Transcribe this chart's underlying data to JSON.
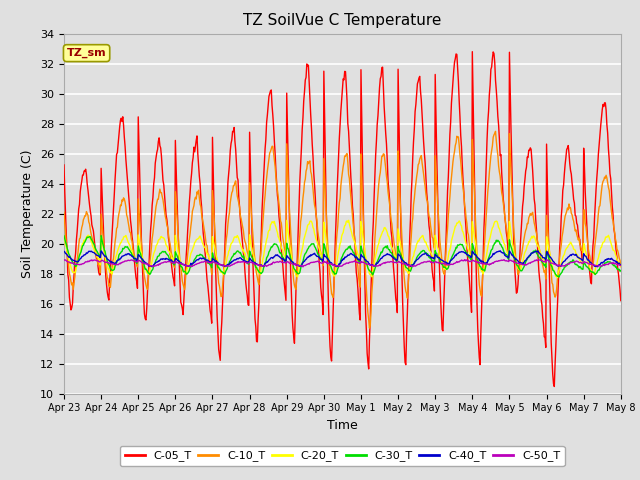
{
  "title": "TZ SoilVue C Temperature",
  "xlabel": "Time",
  "ylabel": "Soil Temperature (C)",
  "ylim": [
    10,
    34
  ],
  "yticks": [
    10,
    12,
    14,
    16,
    18,
    20,
    22,
    24,
    26,
    28,
    30,
    32,
    34
  ],
  "series_colors": {
    "C-05_T": "#ff0000",
    "C-10_T": "#ff8c00",
    "C-20_T": "#ffff00",
    "C-30_T": "#00dd00",
    "C-40_T": "#0000cc",
    "C-50_T": "#bb00bb"
  },
  "series_order": [
    "C-05_T",
    "C-10_T",
    "C-20_T",
    "C-30_T",
    "C-40_T",
    "C-50_T"
  ],
  "background_color": "#e0e0e0",
  "annotation_text": "TZ_sm",
  "annotation_bg": "#ffff99",
  "annotation_border": "#999900",
  "legend_colors": [
    "#ff0000",
    "#ff8c00",
    "#ffff00",
    "#00dd00",
    "#0000cc",
    "#bb00bb"
  ],
  "legend_labels": [
    "C-05_T",
    "C-10_T",
    "C-20_T",
    "C-30_T",
    "C-40_T",
    "C-50_T"
  ],
  "tick_labels": [
    "Apr 23",
    "Apr 24",
    "Apr 25",
    "Apr 26",
    "Apr 27",
    "Apr 28",
    "Apr 29",
    "Apr 30",
    "May 1",
    "May 2",
    "May 3",
    "May 4",
    "May 5",
    "May 6",
    "May 7",
    "May 8"
  ]
}
